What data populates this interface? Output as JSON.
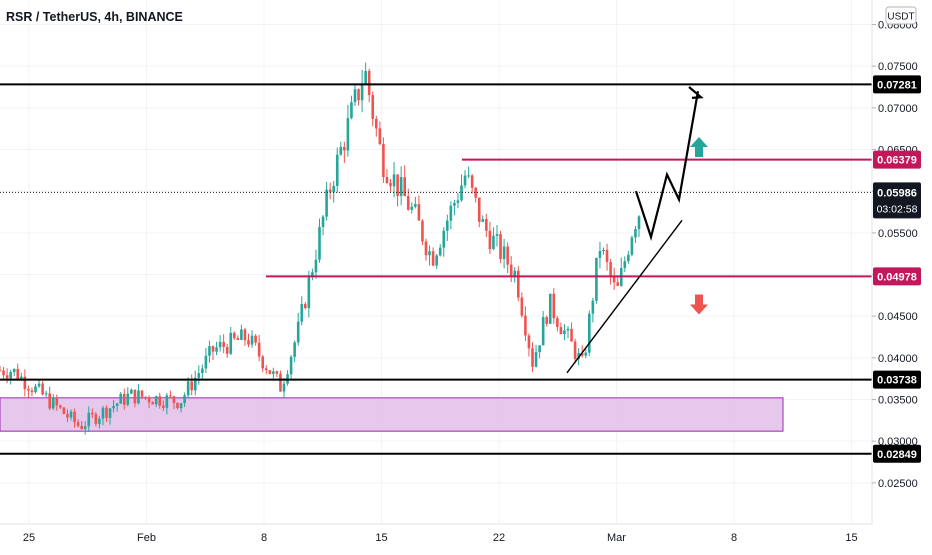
{
  "chart_title": "RSR / TetherUS, 4h, BINANCE",
  "currency_badge": "USDT",
  "chart_data": {
    "type": "candlestick",
    "title": "RSR / TetherUS, 4h, BINANCE",
    "y_axis": {
      "ticks": [
        "0.08000",
        "0.07500",
        "0.07000",
        "0.06500",
        "0.06000",
        "0.05500",
        "0.05000",
        "0.04500",
        "0.04000",
        "0.03500",
        "0.03000",
        "0.02500"
      ],
      "range": [
        0.0215,
        0.0823
      ]
    },
    "x_axis": {
      "ticks": [
        "25",
        "Feb",
        "8",
        "15",
        "22",
        "Mar",
        "8",
        "15"
      ]
    },
    "approx_price_path": [
      {
        "date": "Jan 24",
        "close": 0.0385
      },
      {
        "date": "Jan 26",
        "close": 0.0352
      },
      {
        "date": "Jan 28",
        "close": 0.0318
      },
      {
        "date": "Jan 31",
        "close": 0.0355
      },
      {
        "date": "Feb 2",
        "close": 0.0348
      },
      {
        "date": "Feb 4",
        "close": 0.041
      },
      {
        "date": "Feb 6",
        "close": 0.0425
      },
      {
        "date": "Feb 8",
        "close": 0.0365
      },
      {
        "date": "Feb 9",
        "close": 0.043
      },
      {
        "date": "Feb 11",
        "close": 0.061
      },
      {
        "date": "Feb 13",
        "close": 0.0745
      },
      {
        "date": "Feb 14",
        "close": 0.064
      },
      {
        "date": "Feb 16",
        "close": 0.057
      },
      {
        "date": "Feb 17",
        "close": 0.052
      },
      {
        "date": "Feb 19",
        "close": 0.062
      },
      {
        "date": "Feb 20",
        "close": 0.056
      },
      {
        "date": "Feb 22",
        "close": 0.05
      },
      {
        "date": "Feb 23",
        "close": 0.0395
      },
      {
        "date": "Feb 24",
        "close": 0.0465
      },
      {
        "date": "Feb 26",
        "close": 0.039
      },
      {
        "date": "Feb 27",
        "close": 0.0535
      },
      {
        "date": "Feb 28",
        "close": 0.0475
      },
      {
        "date": "Mar 1",
        "close": 0.056
      },
      {
        "date": "Mar 2",
        "close": 0.0605
      }
    ],
    "levels": [
      {
        "label": "0.07281",
        "value": 0.07281,
        "color": "#000000"
      },
      {
        "label": "0.06379",
        "value": 0.06379,
        "color": "#c2185b"
      },
      {
        "label": "0.04978",
        "value": 0.04978,
        "color": "#c2185b"
      },
      {
        "label": "0.03738",
        "value": 0.03738,
        "color": "#000000"
      },
      {
        "label": "0.02849",
        "value": 0.02849,
        "color": "#000000"
      }
    ],
    "current_price": {
      "value": 0.05986,
      "label": "0.05986",
      "countdown": "03:02:58"
    },
    "support_zone": {
      "low": 0.0312,
      "high": 0.0352,
      "color": "#e1bee7"
    },
    "colors": {
      "up": "#26a69a",
      "down": "#ef5350",
      "accent_magenta": "#c2185b"
    },
    "annotations": [
      {
        "type": "arrow",
        "direction": "up",
        "color": "#26a69a"
      },
      {
        "type": "arrow",
        "direction": "down",
        "color": "#ef5350"
      }
    ]
  }
}
